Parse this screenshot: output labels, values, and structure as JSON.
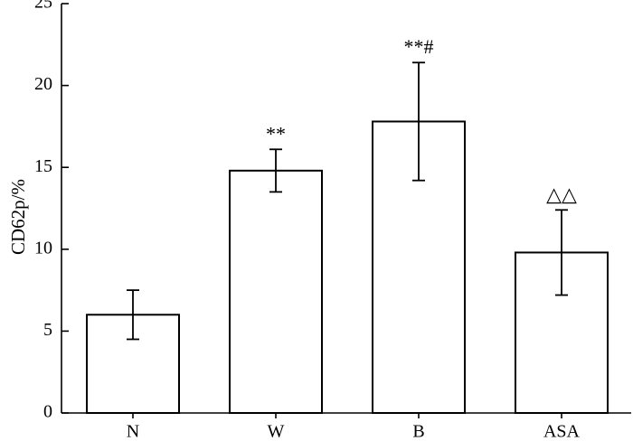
{
  "chart_data": {
    "type": "bar",
    "categories": [
      "N",
      "W",
      "B",
      "ASA"
    ],
    "values": [
      6.0,
      14.8,
      17.8,
      9.8
    ],
    "errors": [
      1.5,
      1.3,
      3.6,
      2.6
    ],
    "annotations": [
      "",
      "**",
      "**#",
      "△△"
    ],
    "ylabel": "CD62p/%",
    "xlabel": "",
    "ylim": [
      0,
      25
    ],
    "yticks": [
      0,
      5,
      10,
      15,
      20,
      25
    ],
    "grid": false,
    "legend": "none"
  }
}
